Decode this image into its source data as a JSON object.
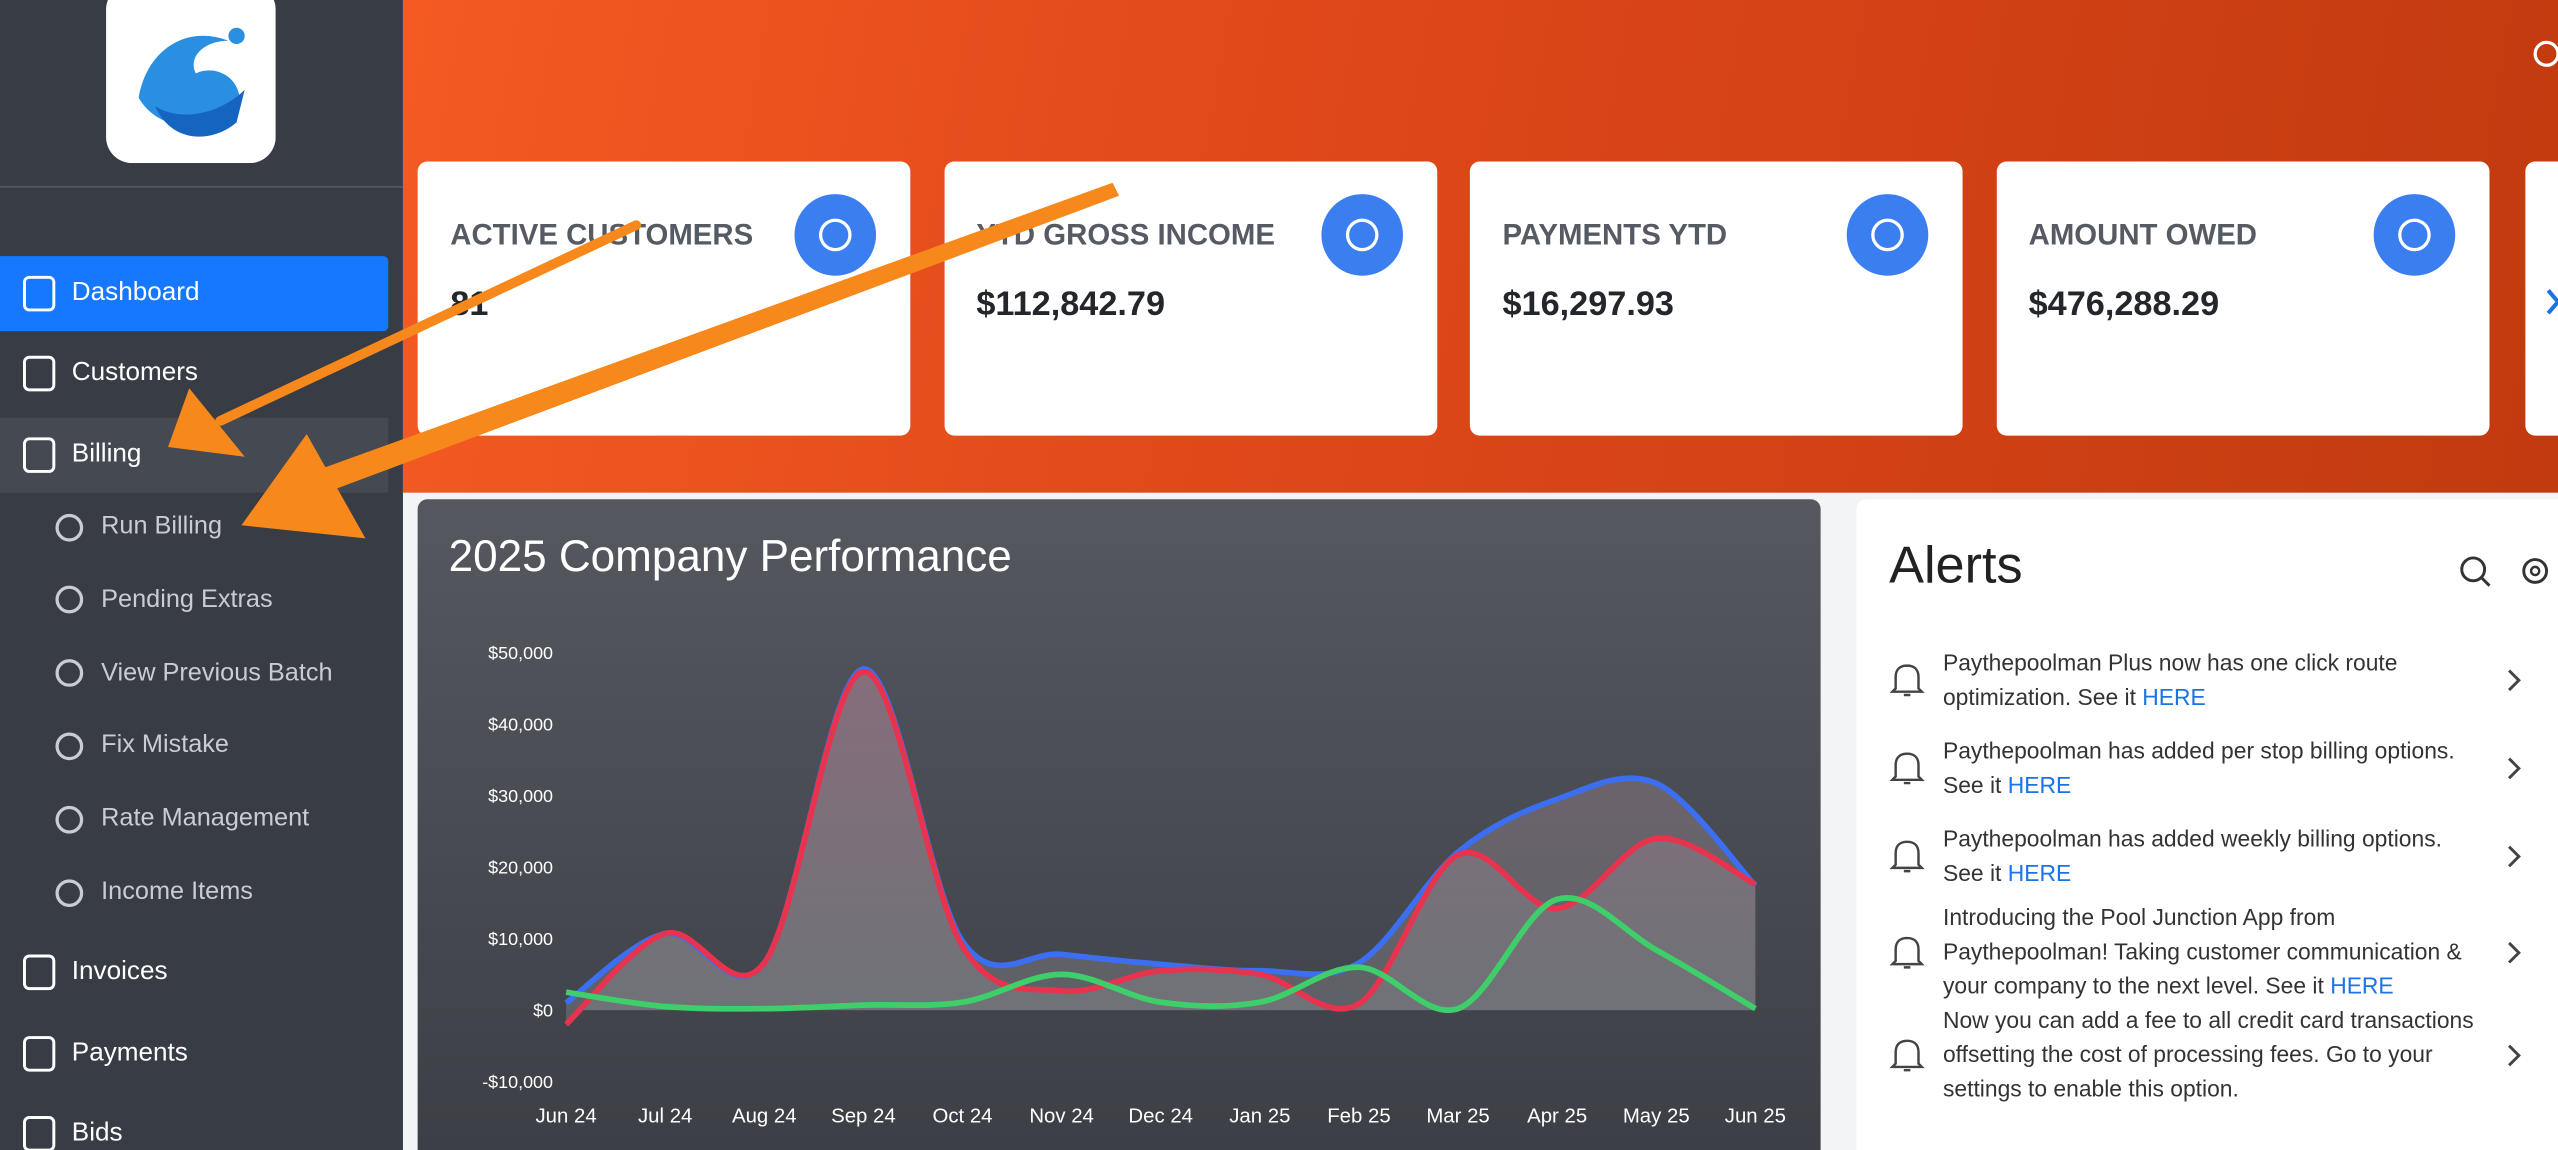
{
  "sidebar": {
    "menu_top": [
      "Dashboard",
      "Customers",
      "Billing"
    ],
    "submenu": [
      "Run Billing",
      "Pending Extras",
      "View Previous Batch",
      "Fix Mistake",
      "Rate Management",
      "Income Items"
    ],
    "menu_bottom": [
      "Invoices",
      "Payments",
      "Bids"
    ]
  },
  "stats": [
    {
      "label": "ACTIVE CUSTOMERS",
      "value": "81"
    },
    {
      "label": "YTD GROSS INCOME",
      "value": "$112,842.79"
    },
    {
      "label": "PAYMENTS YTD",
      "value": "$16,297.93"
    },
    {
      "label": "AMOUNT OWED",
      "value": "$476,288.29"
    }
  ],
  "chart_data": {
    "type": "line",
    "title": "2025 Company Performance",
    "categories": [
      "Jun 24",
      "Jul 24",
      "Aug 24",
      "Sep 24",
      "Oct 24",
      "Nov 24",
      "Dec 24",
      "Jan 25",
      "Feb 25",
      "Mar 25",
      "Apr 25",
      "May 25",
      "Jun 25"
    ],
    "series": [
      {
        "color": "#3b6ef0",
        "values": [
          1000,
          10700,
          6600,
          47700,
          9600,
          7800,
          6400,
          5500,
          6600,
          22100,
          29500,
          31700,
          17400
        ]
      },
      {
        "color": "#e8334f",
        "values": [
          -2000,
          10700,
          6600,
          47300,
          8900,
          2700,
          5500,
          5000,
          900,
          21700,
          14200,
          24000,
          17600
        ]
      },
      {
        "color": "#3fcf6a",
        "values": [
          2500,
          500,
          200,
          700,
          1100,
          5000,
          1100,
          1100,
          6000,
          200,
          15500,
          8400,
          200
        ]
      }
    ],
    "ylim": [
      -10000,
      50000
    ],
    "yticks": [
      {
        "value": -10000,
        "label": "-$10,000"
      },
      {
        "value": 0,
        "label": "$0"
      },
      {
        "value": 10000,
        "label": "$10,000"
      },
      {
        "value": 20000,
        "label": "$20,000"
      },
      {
        "value": 30000,
        "label": "$30,000"
      },
      {
        "value": 40000,
        "label": "$40,000"
      },
      {
        "value": 50000,
        "label": "$50,000"
      }
    ]
  },
  "alerts": {
    "title": "Alerts",
    "items": [
      {
        "text": "Paythepoolman Plus now has one click route optimization. See it ",
        "link": "HERE"
      },
      {
        "text": "Paythepoolman has added per stop billing options. See it ",
        "link": "HERE"
      },
      {
        "text": "Paythepoolman has added weekly billing options. See it ",
        "link": "HERE"
      },
      {
        "text": "Introducing the Pool Junction App from Paythepoolman! Taking customer communication & your company to the next level. See it ",
        "link": "HERE"
      },
      {
        "text": "Now you can add a fee to all credit card transactions offsetting the cost of processing fees. Go to your settings to enable this option."
      }
    ]
  }
}
